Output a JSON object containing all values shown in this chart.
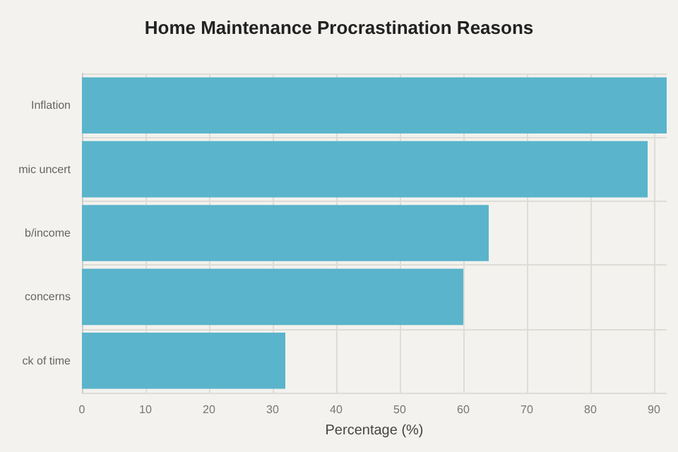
{
  "chart_data": {
    "type": "bar",
    "orientation": "horizontal",
    "title": "Home Maintenance Procrastination Reasons",
    "xlabel": "Percentage (%)",
    "categories": [
      "Inflation",
      "mic uncert",
      "b/income",
      "concerns",
      "ck of time"
    ],
    "values": [
      92,
      89,
      64,
      60,
      32
    ],
    "color": "#5ab4cb",
    "xlim": [
      0,
      92
    ],
    "xticks": [
      0,
      10,
      20,
      30,
      40,
      50,
      60,
      70,
      80,
      90
    ],
    "grid": true
  }
}
